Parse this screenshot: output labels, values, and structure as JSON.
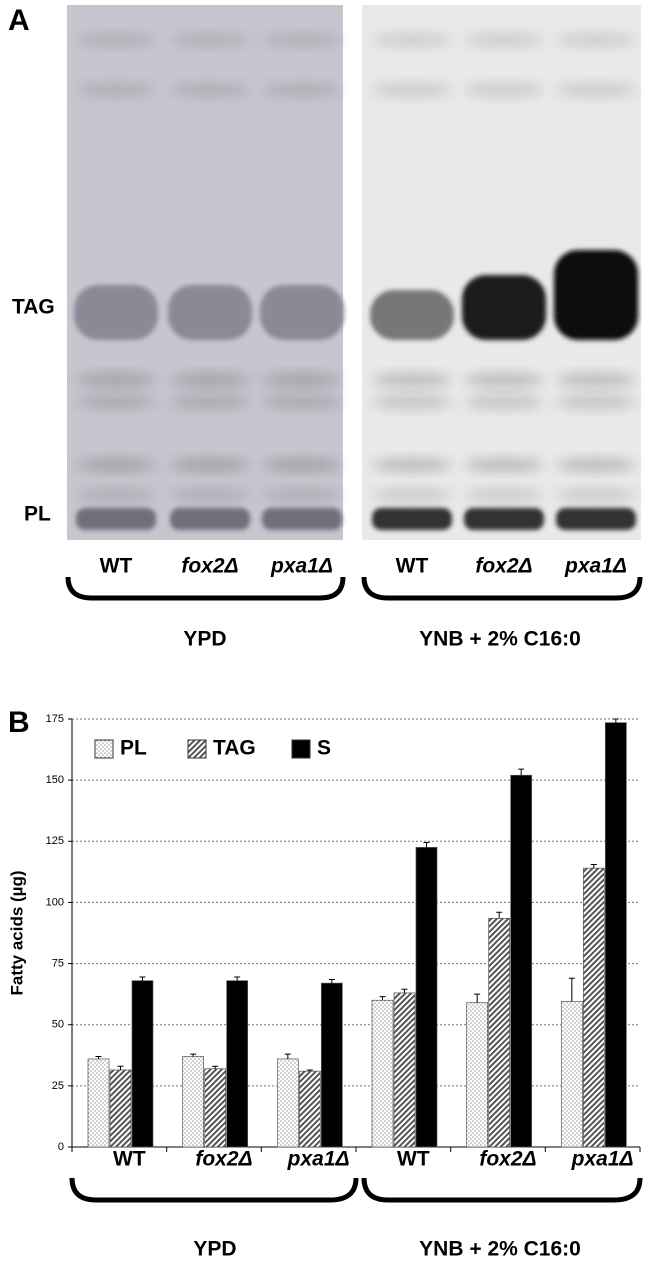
{
  "gel": {
    "panel": "A",
    "band_labels": [
      "TAG",
      "PL"
    ],
    "lanes": [
      "WT",
      "fox2Δ",
      "pxa1Δ",
      "WT",
      "fox2Δ",
      "pxa1Δ"
    ],
    "groups": [
      "YPD",
      "YNB + 2% C16:0"
    ]
  },
  "chart_data": {
    "type": "bar",
    "panel": "B",
    "y_label": "Fatty acids (µg)",
    "categories": [
      "WT",
      "fox2Δ",
      "pxa1Δ",
      "WT",
      "fox2Δ",
      "pxa1Δ"
    ],
    "groups": [
      "YPD",
      "YNB + 2% C16:0"
    ],
    "series": [
      {
        "name": "PL",
        "color": "#ffffff",
        "pattern": "dots",
        "values": [
          36,
          37,
          36,
          60,
          59,
          59.5
        ],
        "errors": [
          1,
          1,
          2,
          1.5,
          3.5,
          9.5
        ]
      },
      {
        "name": "TAG",
        "color": "#9a9a9a",
        "pattern": "hatch",
        "values": [
          31.5,
          32,
          31,
          63,
          93.5,
          114
        ],
        "errors": [
          1.5,
          1,
          0.5,
          1.5,
          2.5,
          1.5
        ]
      },
      {
        "name": "S",
        "color": "#000000",
        "pattern": "solid",
        "values": [
          68,
          68,
          67,
          122.5,
          152,
          173.5
        ],
        "errors": [
          1.5,
          1.5,
          1.5,
          2,
          2.5,
          1.5
        ]
      }
    ],
    "ylim": [
      0,
      175
    ],
    "yticks": [
      0,
      25,
      50,
      75,
      100,
      125,
      150,
      175
    ],
    "grid": true,
    "legend": "top-left"
  }
}
